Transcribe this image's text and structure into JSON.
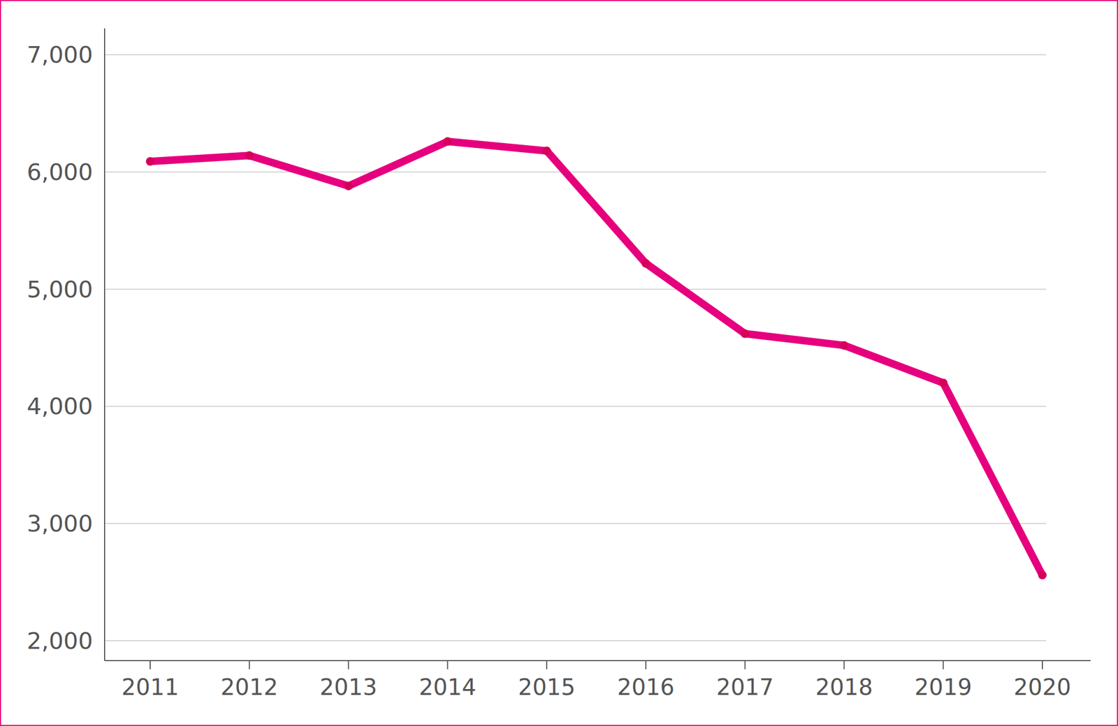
{
  "chart_data": {
    "type": "line",
    "categories": [
      "2011",
      "2012",
      "2013",
      "2014",
      "2015",
      "2016",
      "2017",
      "2018",
      "2019",
      "2020"
    ],
    "values": [
      6090,
      6140,
      5880,
      6260,
      6180,
      5220,
      4620,
      4520,
      4200,
      2560
    ],
    "color": "#e6007e",
    "marker": "circle",
    "ylim": [
      1830,
      7225
    ],
    "yticks": [
      {
        "value": 2000,
        "label": "2,000"
      },
      {
        "value": 3000,
        "label": "3,000"
      },
      {
        "value": 4000,
        "label": "4,000"
      },
      {
        "value": 5000,
        "label": "5,000"
      },
      {
        "value": 6000,
        "label": "6,000"
      },
      {
        "value": 7000,
        "label": "7,000"
      }
    ],
    "grid": true
  }
}
